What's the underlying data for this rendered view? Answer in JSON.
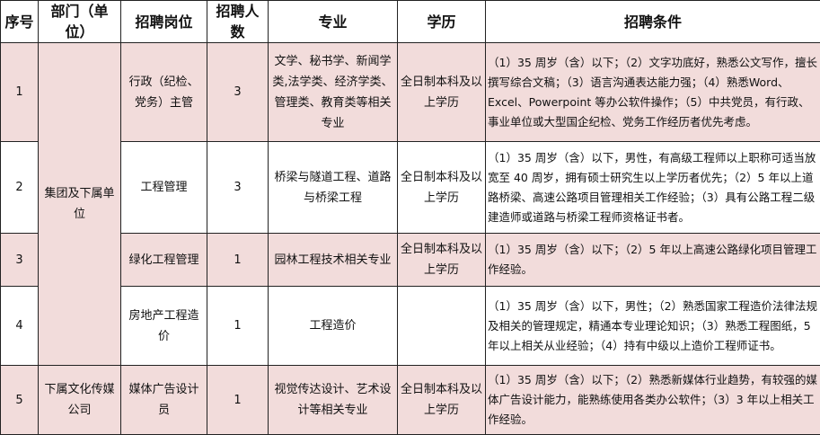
{
  "headers": [
    "序号",
    "部门（单位）",
    "招聘岗位",
    "招聘人数",
    "专业",
    "学历",
    "招聘条件"
  ],
  "colors": {
    "row_highlight": "#f2dcdb",
    "border": "#222222"
  },
  "rows": [
    {
      "no": "1",
      "dept": "集团及下属单位",
      "position": "行政（纪检、党务）主管",
      "count": "3",
      "major": "文学、秘书学、新闻学类,法学类、经济学类、管理类、教育类等相关专业",
      "education": "全日制本科及以上学历",
      "conditions": "（1）35 周岁（含）以下；（2）文字功底好，熟悉公文写作，擅长撰写综合文稿；（3）语言沟通表达能力强；（4）熟悉Word、Excel、Powerpoint 等办公软件操作；（5）中共党员，有行政、事业单位或大型国企纪检、党务工作经历者优先考虑。"
    },
    {
      "no": "2",
      "position": "工程管理",
      "count": "3",
      "major": "桥梁与隧道工程、道路与桥梁工程",
      "education": "全日制本科及以上学历",
      "conditions": "（1）35 周岁（含）以下，男性，有高级工程师以上职称可适当放宽至 40 周岁，拥有硕士研究生以上学历者优先；（2）5 年以上道路桥梁、高速公路项目管理相关工作经验；（3）具有公路工程二级建造师或道路与桥梁工程师资格证书者。"
    },
    {
      "no": "3",
      "position": "绿化工程管理",
      "count": "1",
      "major": "园林工程技术相关专业",
      "education": "全日制本科及以上学历",
      "conditions": "（1）35 周岁（含）以下；（2）5 年以上高速公路绿化项目管理工作经验。"
    },
    {
      "no": "4",
      "position": "房地产工程造价",
      "count": "1",
      "major": "工程造价",
      "education": "",
      "conditions": "（1）35 周岁（含）以下，男性；（2）熟悉国家工程造价法律法规及相关的管理规定，精通本专业理论知识；（3）熟悉工程图纸，5 年以上相关从业经验；（4）持有中级以上造价工程师证书。"
    },
    {
      "no": "5",
      "dept": "下属文化传媒公司",
      "position": "媒体广告设计员",
      "count": "1",
      "major": "视觉传达设计、艺术设计等相关专业",
      "education": "全日制本科及以上学历",
      "conditions": "（1）35 周岁（含）以下；（2）熟悉新媒体行业趋势，有较强的媒体广告设计能力，能熟练使用各类办公软件；（3）3 年以上相关工作经验。"
    }
  ]
}
